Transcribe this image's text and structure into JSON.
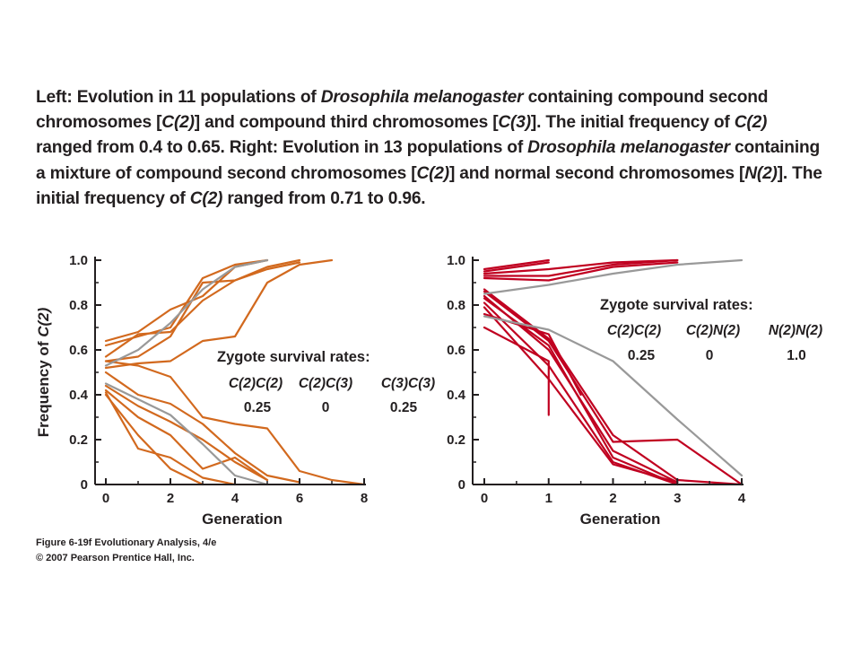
{
  "caption": {
    "parts": [
      {
        "text": "Left: Evolution in 11 populations of ",
        "italic": false
      },
      {
        "text": "Drosophila melanogaster",
        "italic": true
      },
      {
        "text": " containing compound second chromosomes [",
        "italic": false
      },
      {
        "text": "C(2)",
        "italic": true
      },
      {
        "text": "] and compound third chromosomes [",
        "italic": false
      },
      {
        "text": "C(3)",
        "italic": true
      },
      {
        "text": "]. The initial frequency of ",
        "italic": false
      },
      {
        "text": "C(2)",
        "italic": true
      },
      {
        "text": " ranged from 0.4 to 0.65. Right: Evolution in 13 populations of ",
        "italic": false
      },
      {
        "text": "Drosophila melanogaster",
        "italic": true
      },
      {
        "text": " containing a mixture of compound second chromosomes [",
        "italic": false
      },
      {
        "text": "C(2)",
        "italic": true
      },
      {
        "text": "] and normal second chromosomes [",
        "italic": false
      },
      {
        "text": "N(2)",
        "italic": true
      },
      {
        "text": "]. The initial frequency of ",
        "italic": false
      },
      {
        "text": "C(2)",
        "italic": true
      },
      {
        "text": " ranged from 0.71 to 0.96.",
        "italic": false
      }
    ]
  },
  "credit": {
    "line1": "Figure 6-19f  Evolutionary Analysis, 4/e",
    "line2": "© 2007 Pearson Prentice Hall, Inc."
  },
  "colors": {
    "left_series": "#d2691e",
    "right_series": "#c00020",
    "reference": "#999999",
    "axis": "#231f20"
  },
  "chart_data": [
    {
      "type": "line",
      "title": "",
      "xlabel": "Generation",
      "ylabel_prefix": "Frequency of ",
      "ylabel_italic": "C(2)",
      "xlim": [
        0,
        8
      ],
      "ylim": [
        0,
        1.0
      ],
      "xticks": [
        0,
        2,
        4,
        6,
        8
      ],
      "xminor": [
        1,
        3,
        5,
        7
      ],
      "yticks": [
        0,
        0.2,
        0.4,
        0.6,
        0.8,
        1.0
      ],
      "ytick_labels": [
        "0",
        "0.2",
        "0.4",
        "0.6",
        "0.8",
        "1.0"
      ],
      "yminor": [
        0.1,
        0.3,
        0.5,
        0.7,
        0.9
      ],
      "annotation": {
        "title": "Zygote survival rates:",
        "genotypes": [
          "C(2)C(2)",
          "C(2)C(3)",
          "C(3)C(3)"
        ],
        "values": [
          "0.25",
          "0",
          "0.25"
        ]
      },
      "series": [
        {
          "kind": "observed",
          "points": [
            [
              0,
              0.64
            ],
            [
              1,
              0.68
            ],
            [
              2,
              0.78
            ],
            [
              3,
              0.84
            ],
            [
              4,
              0.97
            ],
            [
              5,
              1.0
            ]
          ]
        },
        {
          "kind": "observed",
          "points": [
            [
              0,
              0.62
            ],
            [
              1,
              0.66
            ],
            [
              2,
              0.7
            ],
            [
              3,
              0.92
            ],
            [
              4,
              0.98
            ],
            [
              5,
              1.0
            ]
          ]
        },
        {
          "kind": "observed",
          "points": [
            [
              0,
              0.55
            ],
            [
              1,
              0.57
            ],
            [
              2,
              0.66
            ],
            [
              3,
              0.9
            ],
            [
              4,
              0.91
            ],
            [
              5,
              0.97
            ],
            [
              6,
              1.0
            ]
          ]
        },
        {
          "kind": "observed",
          "points": [
            [
              0,
              0.57
            ],
            [
              1,
              0.67
            ],
            [
              2,
              0.68
            ],
            [
              3,
              0.82
            ],
            [
              4,
              0.91
            ],
            [
              5,
              0.96
            ],
            [
              6,
              0.99
            ]
          ]
        },
        {
          "kind": "observed",
          "points": [
            [
              0,
              0.52
            ],
            [
              1,
              0.54
            ],
            [
              2,
              0.55
            ],
            [
              3,
              0.64
            ],
            [
              4,
              0.66
            ],
            [
              5,
              0.9
            ],
            [
              6,
              0.98
            ],
            [
              7,
              1.0
            ]
          ]
        },
        {
          "kind": "observed",
          "points": [
            [
              0,
              0.55
            ],
            [
              1,
              0.53
            ],
            [
              2,
              0.48
            ],
            [
              3,
              0.3
            ],
            [
              4,
              0.27
            ],
            [
              5,
              0.25
            ],
            [
              6,
              0.06
            ],
            [
              7,
              0.02
            ],
            [
              8,
              0.0
            ]
          ]
        },
        {
          "kind": "observed",
          "points": [
            [
              0,
              0.5
            ],
            [
              1,
              0.4
            ],
            [
              2,
              0.36
            ],
            [
              3,
              0.27
            ],
            [
              4,
              0.14
            ],
            [
              5,
              0.04
            ],
            [
              6,
              0.01
            ]
          ]
        },
        {
          "kind": "observed",
          "points": [
            [
              0,
              0.44
            ],
            [
              1,
              0.35
            ],
            [
              2,
              0.28
            ],
            [
              3,
              0.2
            ],
            [
              4,
              0.1
            ],
            [
              5,
              0.02
            ]
          ]
        },
        {
          "kind": "observed",
          "points": [
            [
              0,
              0.42
            ],
            [
              1,
              0.3
            ],
            [
              2,
              0.22
            ],
            [
              3,
              0.07
            ],
            [
              4,
              0.12
            ],
            [
              5,
              0.02
            ]
          ]
        },
        {
          "kind": "observed",
          "points": [
            [
              0,
              0.41
            ],
            [
              1,
              0.16
            ],
            [
              2,
              0.12
            ],
            [
              3,
              0.03
            ],
            [
              4,
              0.0
            ]
          ]
        },
        {
          "kind": "observed",
          "points": [
            [
              0,
              0.4
            ],
            [
              1,
              0.22
            ],
            [
              2,
              0.07
            ],
            [
              3,
              0.0
            ]
          ]
        },
        {
          "kind": "predicted",
          "points": [
            [
              0,
              0.53
            ],
            [
              1,
              0.6
            ],
            [
              2,
              0.72
            ],
            [
              3,
              0.87
            ],
            [
              4,
              0.97
            ],
            [
              5,
              1.0
            ]
          ]
        },
        {
          "kind": "predicted",
          "points": [
            [
              0,
              0.45
            ],
            [
              1,
              0.38
            ],
            [
              2,
              0.31
            ],
            [
              3,
              0.18
            ],
            [
              4,
              0.04
            ],
            [
              5,
              0.0
            ]
          ]
        }
      ]
    },
    {
      "type": "line",
      "title": "",
      "xlabel": "Generation",
      "xlim": [
        0,
        4
      ],
      "ylim": [
        0,
        1.0
      ],
      "xticks": [
        0,
        1,
        2,
        3,
        4
      ],
      "xminor": [
        0.5,
        1.5,
        2.5,
        3.5
      ],
      "yticks": [
        0,
        0.2,
        0.4,
        0.6,
        0.8,
        1.0
      ],
      "ytick_labels": [
        "0",
        "0.2",
        "0.4",
        "0.6",
        "0.8",
        "1.0"
      ],
      "yminor": [
        0.1,
        0.3,
        0.5,
        0.7,
        0.9
      ],
      "annotation": {
        "title": "Zygote survival rates:",
        "genotypes": [
          "C(2)C(2)",
          "C(2)N(2)",
          "N(2)N(2)"
        ],
        "values": [
          "0.25",
          "0",
          "1.0"
        ]
      },
      "series": [
        {
          "kind": "observed",
          "points": [
            [
              0,
              0.96
            ],
            [
              1,
              1.0
            ]
          ]
        },
        {
          "kind": "observed",
          "points": [
            [
              0,
              0.95
            ],
            [
              1,
              0.99
            ]
          ]
        },
        {
          "kind": "observed",
          "points": [
            [
              0,
              0.94
            ],
            [
              1,
              0.96
            ],
            [
              2,
              0.99
            ],
            [
              3,
              1.0
            ]
          ]
        },
        {
          "kind": "observed",
          "points": [
            [
              0,
              0.93
            ],
            [
              1,
              0.93
            ],
            [
              2,
              0.98
            ],
            [
              3,
              1.0
            ]
          ]
        },
        {
          "kind": "observed",
          "points": [
            [
              0,
              0.92
            ],
            [
              1,
              0.91
            ],
            [
              2,
              0.97
            ],
            [
              3,
              0.99
            ]
          ]
        },
        {
          "kind": "observed",
          "points": [
            [
              0,
              0.87
            ],
            [
              1,
              0.65
            ],
            [
              2,
              0.22
            ],
            [
              3,
              0.02
            ],
            [
              4,
              0.0
            ]
          ]
        },
        {
          "kind": "observed",
          "points": [
            [
              0,
              0.86
            ],
            [
              1,
              0.64
            ],
            [
              2,
              0.19
            ],
            [
              3,
              0.2
            ],
            [
              4,
              0.0
            ]
          ]
        },
        {
          "kind": "observed",
          "points": [
            [
              0,
              0.84
            ],
            [
              1,
              0.6
            ],
            [
              2,
              0.15
            ],
            [
              3,
              0.01
            ]
          ]
        },
        {
          "kind": "observed",
          "points": [
            [
              0,
              0.83
            ],
            [
              1,
              0.62
            ],
            [
              2,
              0.12
            ],
            [
              3,
              0.0
            ]
          ]
        },
        {
          "kind": "observed",
          "points": [
            [
              0,
              0.81
            ],
            [
              1,
              0.53
            ],
            [
              2,
              0.1
            ],
            [
              3,
              0.0
            ]
          ]
        },
        {
          "kind": "observed",
          "points": [
            [
              0,
              0.79
            ],
            [
              1,
              0.47
            ],
            [
              2,
              0.09
            ],
            [
              3,
              0.01
            ]
          ]
        },
        {
          "kind": "observed",
          "points": [
            [
              0,
              0.76
            ],
            [
              1,
              0.67
            ],
            [
              1.5,
              0.4
            ]
          ]
        },
        {
          "kind": "observed",
          "points": [
            [
              0,
              0.7
            ],
            [
              1,
              0.55
            ],
            [
              1,
              0.31
            ]
          ]
        },
        {
          "kind": "predicted",
          "points": [
            [
              0,
              0.85
            ],
            [
              1,
              0.89
            ],
            [
              2,
              0.94
            ],
            [
              3,
              0.98
            ],
            [
              4,
              1.0
            ]
          ]
        },
        {
          "kind": "predicted",
          "points": [
            [
              0,
              0.75
            ],
            [
              1,
              0.69
            ],
            [
              2,
              0.55
            ],
            [
              3,
              0.29
            ],
            [
              4,
              0.04
            ]
          ]
        }
      ]
    }
  ]
}
